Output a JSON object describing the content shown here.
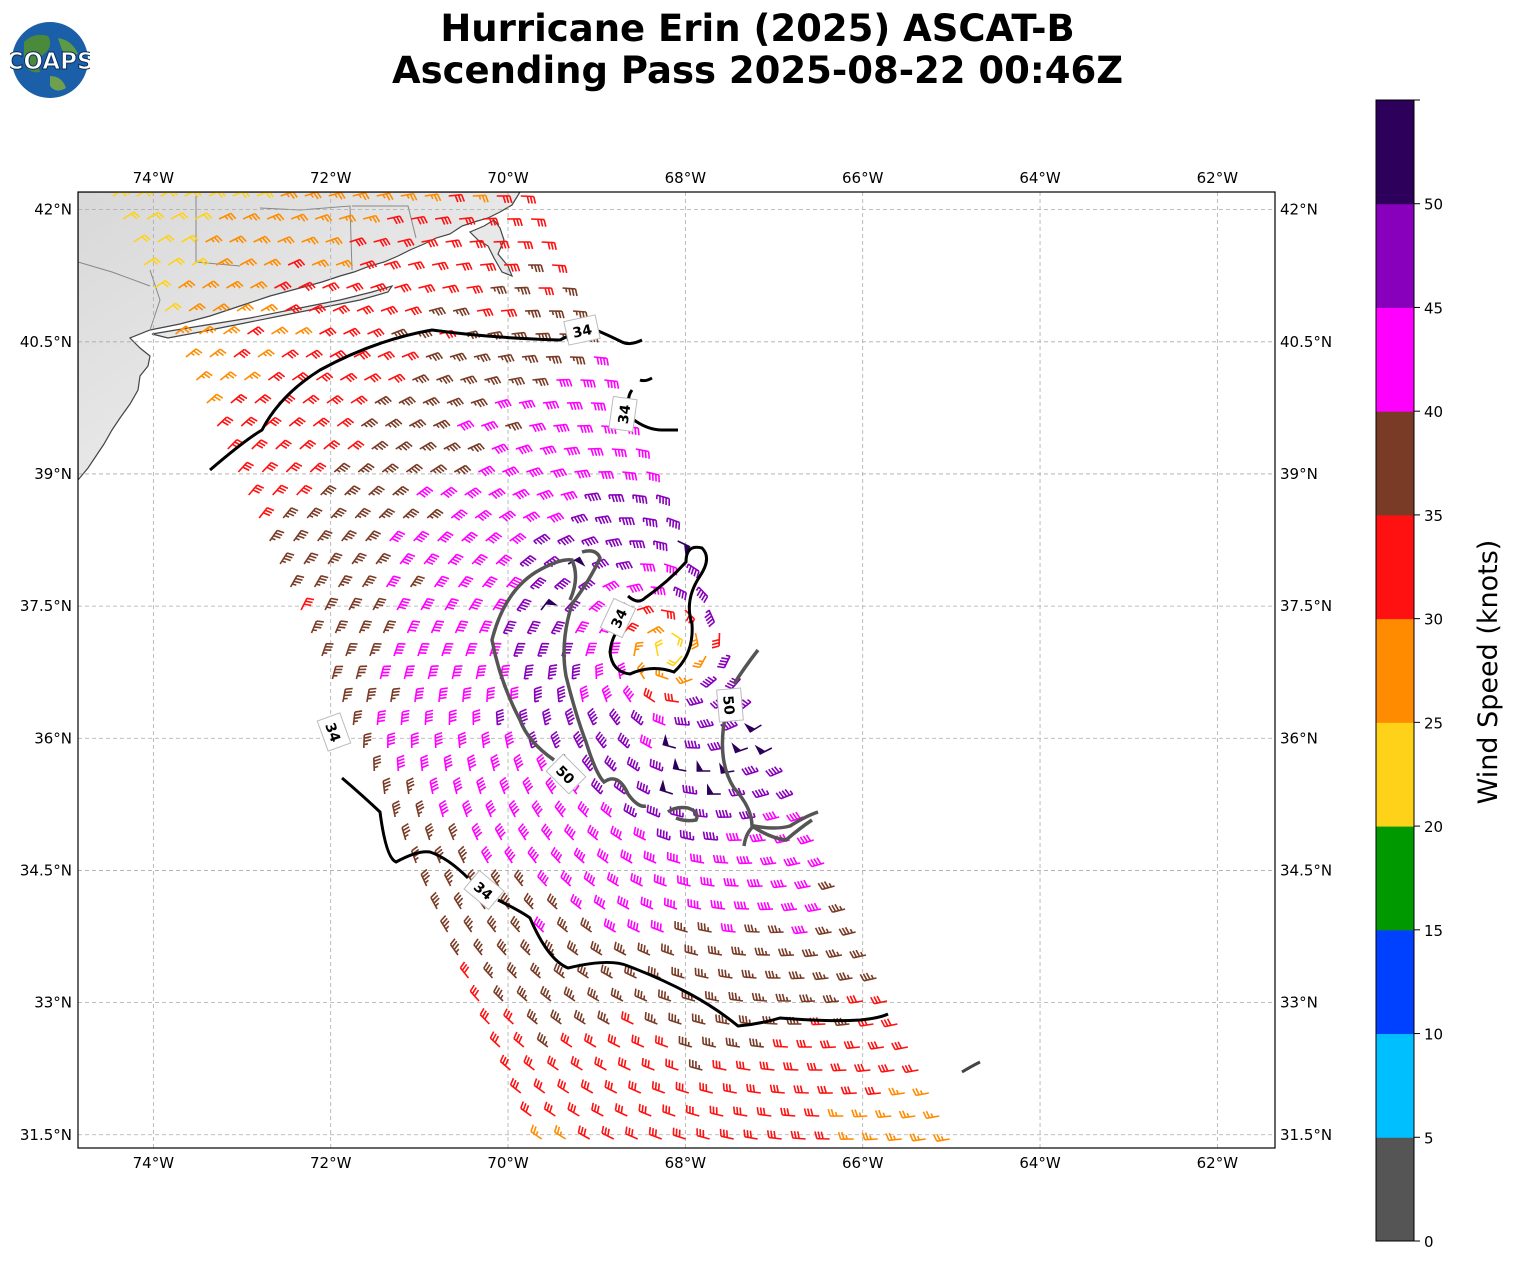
{
  "header": {
    "title_line1": "Hurricane Erin (2025) ASCAT-B",
    "title_line2": "Ascending Pass 2025-08-22 00:46Z"
  },
  "logo": {
    "text": "COAPS",
    "icon": "globe-logo-icon"
  },
  "map": {
    "lon_range": [
      -74.85,
      -61.35
    ],
    "lat_range": [
      31.35,
      42.2
    ],
    "lon_ticks": [
      "74°W",
      "72°W",
      "70°W",
      "68°W",
      "66°W",
      "64°W",
      "62°W"
    ],
    "lon_values": [
      -74,
      -72,
      -70,
      -68,
      -66,
      -64,
      -62
    ],
    "lat_ticks": [
      "42°N",
      "40.5°N",
      "39°N",
      "37.5°N",
      "36°N",
      "34.5°N",
      "33°N",
      "31.5°N"
    ],
    "lat_values": [
      42,
      40.5,
      39,
      37.5,
      36,
      34.5,
      33,
      31.5
    ],
    "grid": true,
    "storm_center": {
      "lon": -68.2,
      "lat": 37.0
    },
    "contours": [
      {
        "level": "34",
        "color": "#000000",
        "label_text": "34"
      },
      {
        "level": "50",
        "color": "#555555",
        "label_text": "50"
      }
    ]
  },
  "colorbar": {
    "label": "Wind Speed (knots)",
    "tick_labels": [
      "0",
      "5",
      "10",
      "15",
      "20",
      "25",
      "30",
      "35",
      "40",
      "45",
      "50"
    ],
    "bins": [
      {
        "min": 0,
        "max": 5,
        "color": "#555555"
      },
      {
        "min": 5,
        "max": 10,
        "color": "#00bfff"
      },
      {
        "min": 10,
        "max": 15,
        "color": "#0040ff"
      },
      {
        "min": 15,
        "max": 20,
        "color": "#009900"
      },
      {
        "min": 20,
        "max": 25,
        "color": "#ffd21a"
      },
      {
        "min": 25,
        "max": 30,
        "color": "#ff8c00"
      },
      {
        "min": 30,
        "max": 35,
        "color": "#ff1111"
      },
      {
        "min": 35,
        "max": 40,
        "color": "#7a3b26"
      },
      {
        "min": 40,
        "max": 45,
        "color": "#ff00ff"
      },
      {
        "min": 45,
        "max": 50,
        "color": "#8800bb"
      },
      {
        "min": 50,
        "max": 55,
        "color": "#2d005b"
      }
    ]
  }
}
